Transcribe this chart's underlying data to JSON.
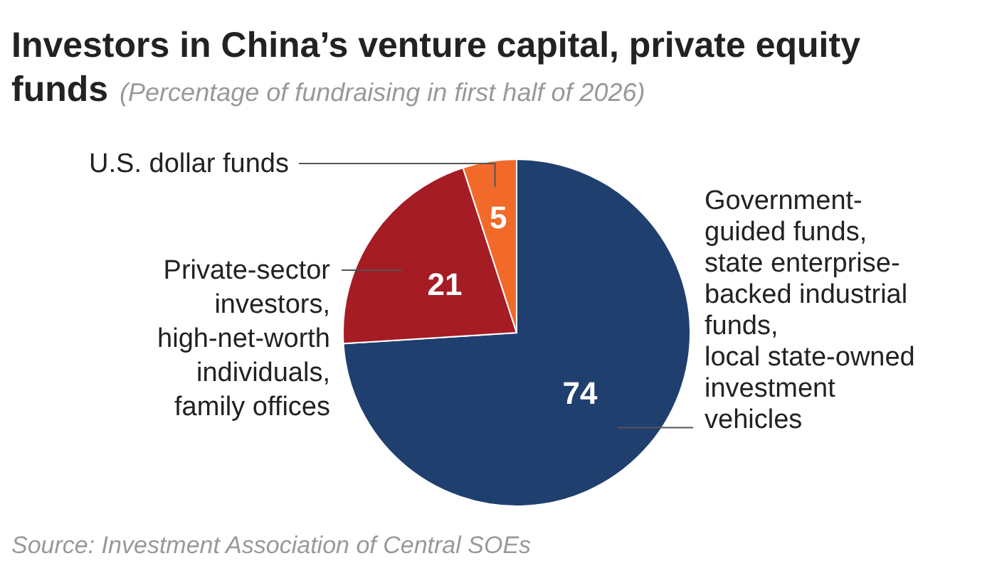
{
  "chart_data": {
    "type": "pie",
    "title": "Investors in China’s venture capital, private equity funds",
    "subtitle": "(Percentage of fundraising in first half of 2026)",
    "categories": [
      "Government-\nguided funds,\nstate enterprise-\nbacked industrial\nfunds,\nlocal state-owned\ninvestment\nvehicles",
      "Private-sector\ninvestors,\nhigh-net-worth\nindividuals,\nfamily offices",
      "U.S. dollar funds"
    ],
    "values": [
      74,
      21,
      5
    ],
    "colors": [
      "#1f3f6e",
      "#a51c24",
      "#f26a2a"
    ],
    "data_labels": true,
    "annotations": [
      "Source: Investment Association of Central SOEs"
    ]
  }
}
